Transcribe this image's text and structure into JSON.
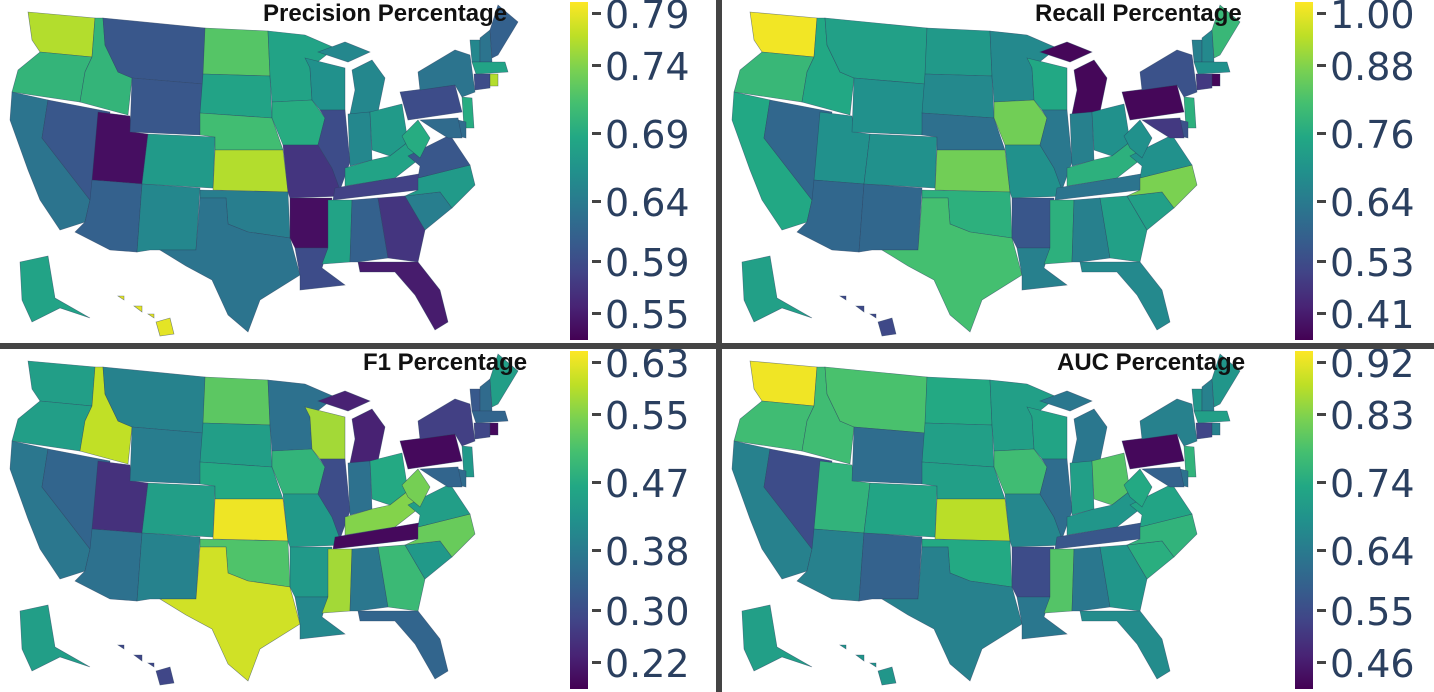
{
  "chart_data": [
    {
      "type": "choropleth",
      "title": "Precision Percentage",
      "colorscale": "viridis",
      "colorbar_ticks": [
        "0.79",
        "0.74",
        "0.69",
        "0.64",
        "0.59",
        "0.55"
      ],
      "range": [
        0.54,
        0.8
      ],
      "values": {
        "WA": 0.77,
        "OR": 0.71,
        "CA": 0.64,
        "ID": 0.71,
        "NV": 0.61,
        "UT": 0.55,
        "AZ": 0.62,
        "MT": 0.61,
        "WY": 0.61,
        "CO": 0.68,
        "NM": 0.66,
        "ND": 0.73,
        "SD": 0.69,
        "NE": 0.72,
        "KS": 0.77,
        "OK": 0.65,
        "TX": 0.64,
        "MN": 0.69,
        "IA": 0.7,
        "MO": 0.58,
        "AR": 0.55,
        "LA": 0.6,
        "WI": 0.67,
        "IL": 0.6,
        "MI": 0.66,
        "IN": 0.66,
        "OH": 0.68,
        "KY": 0.69,
        "TN": 0.59,
        "MS": 0.69,
        "AL": 0.62,
        "GA": 0.58,
        "FL": 0.56,
        "SC": 0.65,
        "NC": 0.68,
        "VA": 0.61,
        "WV": 0.7,
        "PA": 0.6,
        "NY": 0.64,
        "VT": 0.66,
        "NH": 0.64,
        "ME": 0.62,
        "MA": 0.69,
        "CT": 0.6,
        "RI": 0.77,
        "NJ": 0.7,
        "DE": 0.63,
        "MD": 0.63,
        "AK": 0.69,
        "HI": 0.79
      }
    },
    {
      "type": "choropleth",
      "title": "Recall Percentage",
      "colorscale": "viridis",
      "colorbar_ticks": [
        "1.00",
        "0.88",
        "0.76",
        "0.64",
        "0.53",
        "0.41"
      ],
      "range": [
        0.4,
        1.0
      ],
      "values": {
        "WA": 0.99,
        "OR": 0.8,
        "CA": 0.76,
        "ID": 0.76,
        "NV": 0.6,
        "UT": 0.7,
        "AZ": 0.6,
        "MT": 0.74,
        "WY": 0.7,
        "CO": 0.7,
        "NM": 0.6,
        "ND": 0.72,
        "SD": 0.68,
        "NE": 0.62,
        "KS": 0.87,
        "OK": 0.78,
        "TX": 0.82,
        "MN": 0.68,
        "IA": 0.87,
        "MO": 0.7,
        "AR": 0.56,
        "LA": 0.66,
        "WI": 0.76,
        "IL": 0.64,
        "MI": 0.41,
        "IN": 0.66,
        "OH": 0.7,
        "KY": 0.78,
        "TN": 0.63,
        "MS": 0.78,
        "AL": 0.66,
        "GA": 0.74,
        "FL": 0.68,
        "SC": 0.74,
        "NC": 0.88,
        "VA": 0.7,
        "WV": 0.7,
        "PA": 0.41,
        "NY": 0.55,
        "VT": 0.66,
        "NH": 0.68,
        "ME": 0.8,
        "MA": 0.7,
        "CT": 0.5,
        "RI": 0.41,
        "NJ": 0.78,
        "DE": 0.55,
        "MD": 0.5,
        "AK": 0.74,
        "HI": 0.53
      }
    },
    {
      "type": "choropleth",
      "title": "F1 Percentage",
      "colorscale": "viridis",
      "colorbar_ticks": [
        "0.63",
        "0.55",
        "0.47",
        "0.38",
        "0.30",
        "0.22"
      ],
      "range": [
        0.21,
        0.64
      ],
      "values": {
        "WA": 0.45,
        "OR": 0.45,
        "CA": 0.38,
        "ID": 0.6,
        "NV": 0.35,
        "UT": 0.27,
        "AZ": 0.37,
        "MT": 0.4,
        "WY": 0.39,
        "CO": 0.45,
        "NM": 0.4,
        "ND": 0.53,
        "SD": 0.45,
        "NE": 0.47,
        "KS": 0.63,
        "OK": 0.52,
        "TX": 0.61,
        "MN": 0.37,
        "IA": 0.49,
        "MO": 0.44,
        "AR": 0.44,
        "LA": 0.41,
        "WI": 0.58,
        "IL": 0.31,
        "MI": 0.25,
        "IN": 0.37,
        "OH": 0.47,
        "KY": 0.56,
        "TN": 0.22,
        "MS": 0.58,
        "AL": 0.38,
        "GA": 0.5,
        "FL": 0.35,
        "SC": 0.44,
        "NC": 0.54,
        "VA": 0.45,
        "WV": 0.55,
        "PA": 0.22,
        "NY": 0.29,
        "VT": 0.33,
        "NH": 0.36,
        "ME": 0.45,
        "MA": 0.35,
        "CT": 0.3,
        "RI": 0.22,
        "NJ": 0.44,
        "DE": 0.36,
        "MD": 0.35,
        "AK": 0.45,
        "HI": 0.3
      }
    },
    {
      "type": "choropleth",
      "title": "AUC Percentage",
      "colorscale": "viridis",
      "colorbar_ticks": [
        "0.92",
        "0.83",
        "0.74",
        "0.64",
        "0.55",
        "0.46"
      ],
      "range": [
        0.45,
        0.93
      ],
      "values": {
        "WA": 0.92,
        "OR": 0.78,
        "CA": 0.66,
        "ID": 0.78,
        "NV": 0.56,
        "UT": 0.76,
        "AZ": 0.66,
        "MT": 0.79,
        "WY": 0.62,
        "CO": 0.73,
        "NM": 0.6,
        "ND": 0.74,
        "SD": 0.72,
        "NE": 0.72,
        "KS": 0.88,
        "OK": 0.74,
        "TX": 0.66,
        "MN": 0.72,
        "IA": 0.78,
        "MO": 0.67,
        "AR": 0.56,
        "LA": 0.64,
        "WI": 0.73,
        "IL": 0.62,
        "MI": 0.64,
        "IN": 0.72,
        "OH": 0.8,
        "KY": 0.7,
        "TN": 0.58,
        "MS": 0.8,
        "AL": 0.64,
        "GA": 0.7,
        "FL": 0.68,
        "SC": 0.75,
        "NC": 0.76,
        "VA": 0.73,
        "WV": 0.74,
        "PA": 0.46,
        "NY": 0.66,
        "VT": 0.7,
        "NH": 0.66,
        "ME": 0.7,
        "MA": 0.72,
        "CT": 0.55,
        "RI": 0.66,
        "NJ": 0.76,
        "DE": 0.63,
        "MD": 0.6,
        "AK": 0.72,
        "HI": 0.7
      }
    }
  ]
}
